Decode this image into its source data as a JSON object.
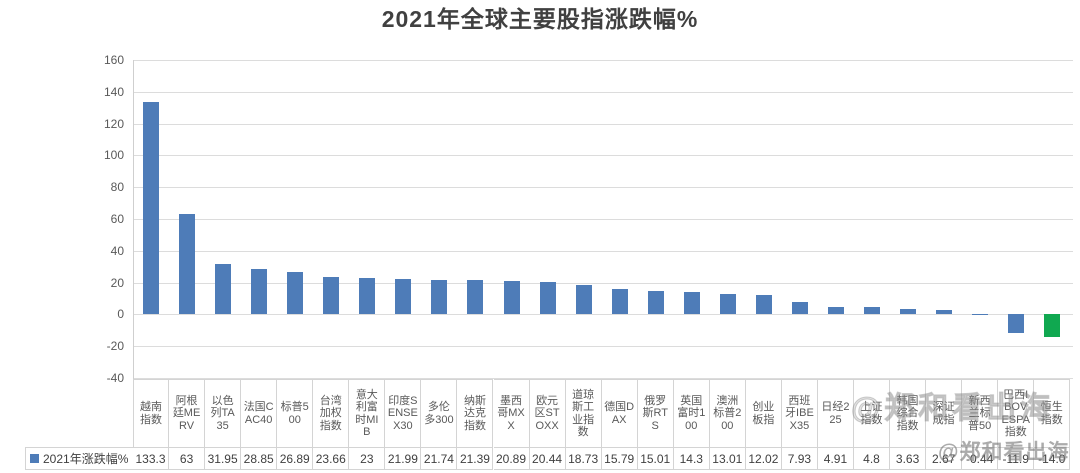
{
  "title": "2021年全球主要股指涨跌幅%",
  "legend": {
    "label": "2021年涨跌幅%"
  },
  "watermarks": {
    "account": "@郑和看出海"
  },
  "colors": {
    "bar": "#4E7CB8",
    "highlight": "#10A850",
    "gridline": "#DCDCDC",
    "table_border": "#D4D4D4"
  },
  "chart_data": {
    "type": "bar",
    "title": "2021年全球主要股指涨跌幅%",
    "categories": [
      "越南指数",
      "阿根廷MERV",
      "以色列TA35",
      "法国CAC40",
      "标普500",
      "台湾加权指数",
      "意大利富时MIB",
      "印度SENSEX30",
      "多伦多300",
      "纳斯达克指数",
      "墨西哥MXX",
      "欧元区STOXX",
      "道琼斯工业指数",
      "德国DAX",
      "俄罗斯RTS",
      "英国富时100",
      "澳洲标普200",
      "创业板指",
      "西班牙IBEX35",
      "日经225",
      "上证指数",
      "韩国综合指数",
      "深证成指",
      "新西兰标普50",
      "巴西IBOVESPA指数",
      "恒生指数"
    ],
    "series": [
      {
        "name": "2021年涨跌幅%",
        "values": [
          133.3,
          63,
          31.95,
          28.85,
          26.89,
          23.66,
          23,
          21.99,
          21.74,
          21.39,
          20.89,
          20.44,
          18.73,
          15.79,
          15.01,
          14.3,
          13.01,
          12.02,
          7.93,
          4.91,
          4.8,
          3.63,
          2.67,
          -0.44,
          -11.9,
          -14.0
        ]
      }
    ],
    "value_labels": [
      "133.3",
      "63",
      "31.95",
      "28.85",
      "26.89",
      "23.66",
      "23",
      "21.99",
      "21.74",
      "21.39",
      "20.89",
      "20.44",
      "18.73",
      "15.79",
      "15.01",
      "14.3",
      "13.01",
      "12.02",
      "7.93",
      "4.91",
      "4.8",
      "3.63",
      "2.67",
      "-0.44",
      "-11.9",
      "-14.0"
    ],
    "highlight_category": "恒生指数",
    "ylim": [
      -40,
      160
    ],
    "yticks": [
      160,
      140,
      120,
      100,
      80,
      60,
      40,
      20,
      0,
      -20,
      -40
    ],
    "grid": true,
    "data_table": true,
    "legend_position": "table-left"
  }
}
